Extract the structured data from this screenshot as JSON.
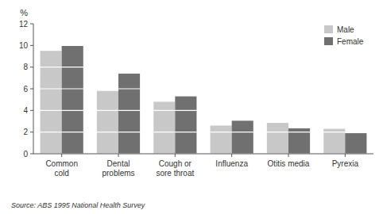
{
  "chart_data": {
    "type": "bar",
    "y_label": "%",
    "categories": [
      "Common\ncold",
      "Dental\nproblems",
      "Cough or\nsore throat",
      "Influenza",
      "Otitis media",
      "Pyrexia"
    ],
    "series": [
      {
        "name": "Male",
        "color": "#c8c8c8",
        "values": [
          9.5,
          5.8,
          4.8,
          2.6,
          2.85,
          2.3
        ]
      },
      {
        "name": "Female",
        "color": "#707070",
        "values": [
          10.0,
          7.4,
          5.3,
          3.05,
          2.35,
          1.9
        ]
      }
    ],
    "ylim": [
      0,
      12
    ],
    "yticks": [
      0,
      2,
      4,
      6,
      8,
      10,
      12
    ],
    "grid": true,
    "legend": "upper right",
    "annotations": [
      "Source: ABS 1995 National Health Survey"
    ]
  }
}
